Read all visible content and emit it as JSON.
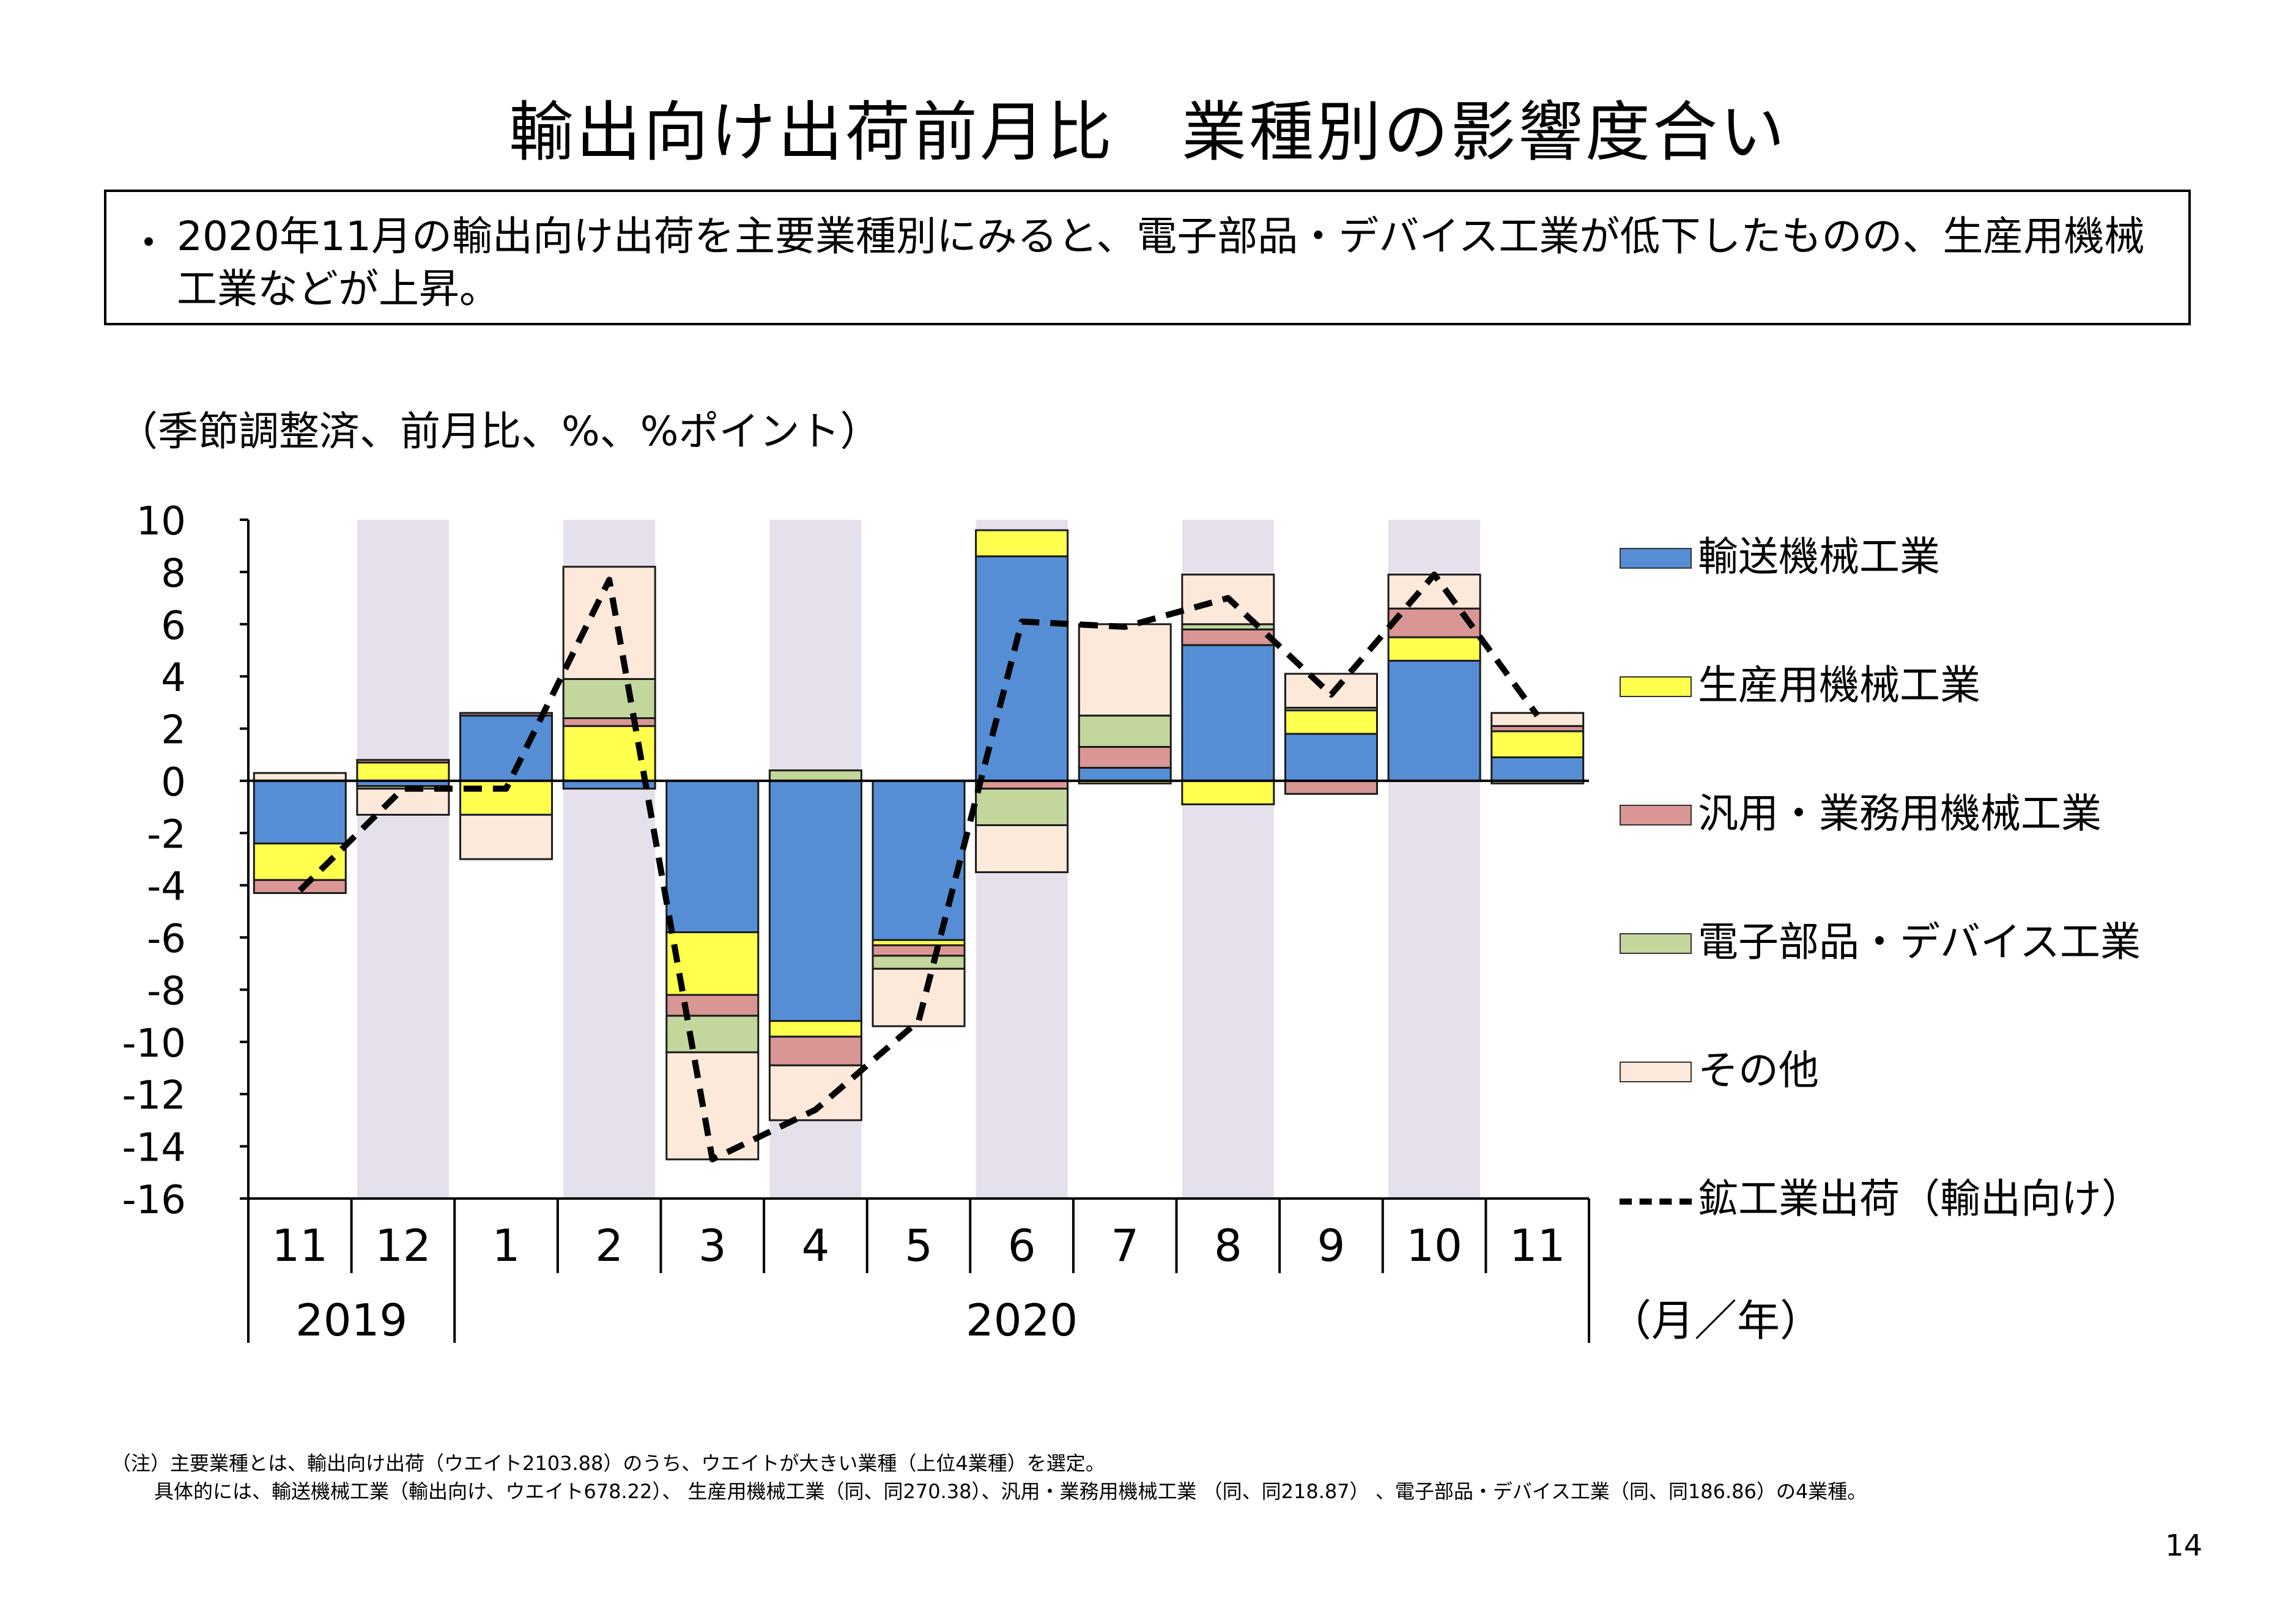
{
  "title": "輸出向け出荷前月比　業種別の影響度合い",
  "summary": {
    "bullet": "・",
    "text": "2020年11月の輸出向け出荷を主要業種別にみると、電子部品・デバイス工業が低下したものの、生産用機械工業などが上昇。"
  },
  "unit_label": "（季節調整済、前月比、%、%ポイント）",
  "chart_data": {
    "type": "bar",
    "stacked": true,
    "title": "",
    "xlabel": "（月／年）",
    "ylabel": "",
    "ylim": [
      -16,
      10
    ],
    "yticks": [
      "10",
      "8",
      "6",
      "4",
      "2",
      "0",
      "-2",
      "-4",
      "-6",
      "-8",
      "-10",
      "-12",
      "-14",
      "-16"
    ],
    "categories": [
      "11",
      "12",
      "1",
      "2",
      "3",
      "4",
      "5",
      "6",
      "7",
      "8",
      "9",
      "10",
      "11"
    ],
    "year_groups": [
      {
        "label": "2019",
        "span": [
          0,
          1
        ]
      },
      {
        "label": "2020",
        "span": [
          2,
          12
        ]
      }
    ],
    "axis_unit": "（月／年）",
    "grid": false,
    "shaded_months": [
      1,
      3,
      5,
      7,
      9,
      11
    ],
    "series": [
      {
        "name": "輸送機械工業",
        "color": "#558ED5",
        "values": [
          -2.4,
          -0.2,
          2.5,
          -0.3,
          -5.8,
          -9.2,
          -6.1,
          8.6,
          0.5,
          5.2,
          1.8,
          4.6,
          0.9
        ]
      },
      {
        "name": "生産用機械工業",
        "color": "#FFFF4D",
        "values": [
          -1.4,
          0.7,
          -1.3,
          2.1,
          -2.4,
          -0.6,
          -0.2,
          1.0,
          -0.1,
          -0.9,
          0.9,
          0.9,
          1.0
        ]
      },
      {
        "name": "汎用・業務用機械工業",
        "color": "#D99694",
        "values": [
          -0.5,
          0.1,
          0.1,
          0.3,
          -0.8,
          -1.1,
          -0.4,
          -0.3,
          0.8,
          0.6,
          -0.5,
          1.1,
          0.2
        ]
      },
      {
        "name": "電子部品・デバイス工業",
        "color": "#C3D69B",
        "values": [
          0.0,
          -0.1,
          0.0,
          1.5,
          -1.4,
          0.4,
          -0.5,
          -1.4,
          1.2,
          0.2,
          0.1,
          0.0,
          -0.1
        ]
      },
      {
        "name": "その他",
        "color": "#FDE9D9",
        "values": [
          0.3,
          -1.0,
          -1.7,
          4.3,
          -4.1,
          -2.1,
          -2.2,
          -1.8,
          3.5,
          1.9,
          1.3,
          1.3,
          0.5
        ]
      }
    ],
    "line": {
      "name": "鉱工業出荷（輸出向け）",
      "color": "#000000",
      "values": [
        -4.2,
        -0.3,
        -0.3,
        7.7,
        -14.5,
        -12.6,
        -9.2,
        6.1,
        5.9,
        7.0,
        3.3,
        7.9,
        2.5
      ]
    }
  },
  "note": {
    "line1": "（注）主要業種とは、輸出向け出荷（ウエイト2103.88）のうち、ウエイトが大きい業種（上位4業種）を選定。",
    "line2": "具体的には、輸送機械工業（輸出向け、ウエイト678.22）、 生産用機械工業（同、同270.38）、汎用・業務用機械工業 （同、同218.87） 、電子部品・デバイス工業（同、同186.86）の4業種。"
  },
  "page_number": "14"
}
